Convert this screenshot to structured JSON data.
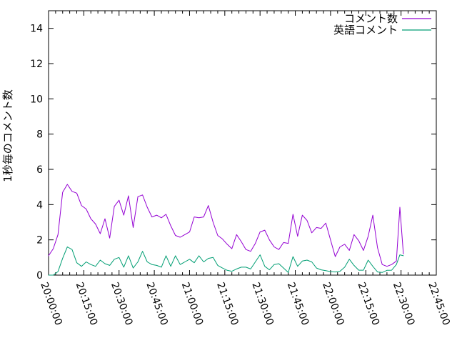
{
  "figure": {
    "background_color": "#ffffff",
    "border_color": "#000000",
    "text_color": "#000000"
  },
  "chart_data": {
    "type": "line",
    "title": "",
    "xlabel": "",
    "ylabel": "1秒毎のコメント数",
    "grid": false,
    "legend": {
      "position": "top-right-inside",
      "entries": [
        "コメント数",
        "英語コメント"
      ]
    },
    "x_axis": {
      "start_label": "20:00:00",
      "end_label": "22:45:00",
      "start_minutes": 0,
      "end_minutes": 165,
      "major_tick_interval_minutes": 15,
      "minor_tick_interval_minutes": 3,
      "tick_labels": [
        "20:00:00",
        "20:15:00",
        "20:30:00",
        "20:45:00",
        "21:00:00",
        "21:15:00",
        "21:30:00",
        "21:45:00",
        "22:00:00",
        "22:15:00",
        "22:30:00",
        "22:45:00"
      ],
      "tick_label_rotation_deg": 70
    },
    "y_axis": {
      "min": 0,
      "max": 15,
      "ticks": [
        0,
        2,
        4,
        6,
        8,
        10,
        12,
        14
      ]
    },
    "x_minutes": [
      0,
      2,
      4,
      6,
      8,
      10,
      12,
      14,
      16,
      18,
      20,
      22,
      24,
      26,
      28,
      30,
      32,
      34,
      36,
      38,
      40,
      42,
      44,
      46,
      48,
      50,
      52,
      54,
      56,
      58,
      60,
      62,
      64,
      66,
      68,
      70,
      72,
      74,
      76,
      78,
      80,
      82,
      84,
      86,
      88,
      90,
      92,
      94,
      96,
      98,
      100,
      102,
      104,
      106,
      108,
      110,
      112,
      114,
      116,
      118,
      120,
      122,
      124,
      126,
      128,
      130,
      132,
      134,
      136,
      138,
      140,
      142,
      144,
      146,
      148,
      149.5,
      151
    ],
    "series": [
      {
        "name": "コメント数",
        "color": "#9400d3",
        "values": [
          1.1,
          1.5,
          2.3,
          4.7,
          5.15,
          4.75,
          4.65,
          3.95,
          3.75,
          3.2,
          2.9,
          2.35,
          3.2,
          2.1,
          3.9,
          4.25,
          3.4,
          4.5,
          2.7,
          4.45,
          4.55,
          3.85,
          3.3,
          3.4,
          3.25,
          3.45,
          2.8,
          2.25,
          2.15,
          2.3,
          2.45,
          3.3,
          3.25,
          3.3,
          3.95,
          3.0,
          2.25,
          2.05,
          1.75,
          1.5,
          2.3,
          1.9,
          1.45,
          1.35,
          1.8,
          2.45,
          2.55,
          2.0,
          1.6,
          1.45,
          1.85,
          1.8,
          3.45,
          2.2,
          3.4,
          3.1,
          2.4,
          2.7,
          2.65,
          2.95,
          2.0,
          1.05,
          1.6,
          1.75,
          1.4,
          2.3,
          1.95,
          1.4,
          2.2,
          3.4,
          1.55,
          0.6,
          0.5,
          0.6,
          0.8,
          3.85,
          1.2
        ]
      },
      {
        "name": "英語コメント",
        "color": "#009e73",
        "values": [
          0.0,
          0.0,
          0.2,
          0.95,
          1.6,
          1.45,
          0.7,
          0.5,
          0.75,
          0.6,
          0.5,
          0.85,
          0.65,
          0.55,
          0.9,
          1.0,
          0.45,
          1.1,
          0.4,
          0.75,
          1.35,
          0.75,
          0.6,
          0.55,
          0.45,
          1.1,
          0.5,
          1.1,
          0.6,
          0.75,
          0.9,
          0.7,
          1.1,
          0.75,
          0.95,
          1.0,
          0.55,
          0.4,
          0.27,
          0.22,
          0.35,
          0.45,
          0.45,
          0.35,
          0.75,
          1.15,
          0.5,
          0.3,
          0.6,
          0.65,
          0.4,
          0.15,
          1.05,
          0.5,
          0.8,
          0.85,
          0.75,
          0.4,
          0.3,
          0.25,
          0.2,
          0.18,
          0.22,
          0.45,
          0.9,
          0.55,
          0.28,
          0.28,
          0.85,
          0.5,
          0.18,
          0.15,
          0.27,
          0.28,
          0.6,
          1.15,
          1.1
        ]
      }
    ]
  }
}
